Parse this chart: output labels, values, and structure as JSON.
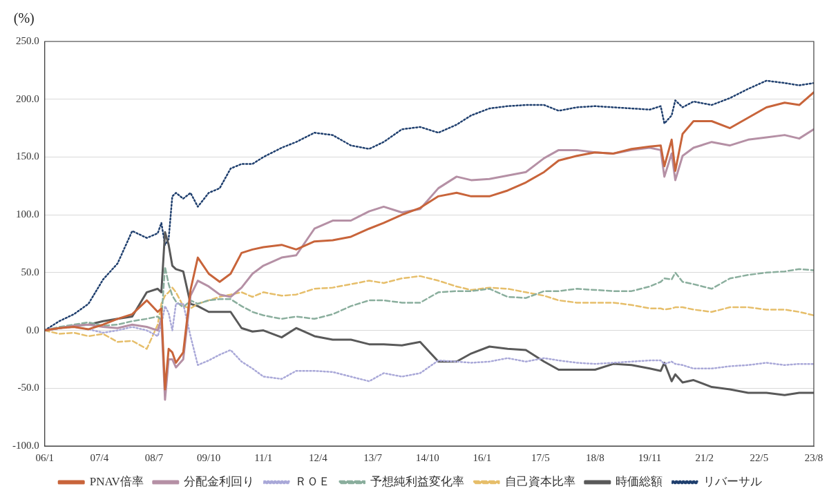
{
  "chart_data": {
    "type": "line",
    "ylabel": "(%)",
    "x": [
      "2006-01",
      "2006-05",
      "2006-09",
      "2007-01",
      "2007-05",
      "2007-09",
      "2008-01",
      "2008-05",
      "2008-08",
      "2008-09",
      "2008-10",
      "2008-11",
      "2008-12",
      "2009-01",
      "2009-03",
      "2009-05",
      "2009-07",
      "2009-10",
      "2010-01",
      "2010-04",
      "2010-07",
      "2010-10",
      "2011-01",
      "2011-06",
      "2011-10",
      "2012-03",
      "2012-08",
      "2013-01",
      "2013-06",
      "2013-10",
      "2014-03",
      "2014-08",
      "2015-01",
      "2015-06",
      "2015-10",
      "2016-03",
      "2016-08",
      "2017-01",
      "2017-06",
      "2017-10",
      "2018-03",
      "2018-08",
      "2019-01",
      "2019-06",
      "2019-11",
      "2020-02",
      "2020-03",
      "2020-05",
      "2020-06",
      "2020-08",
      "2020-11",
      "2021-04",
      "2021-09",
      "2022-02",
      "2022-07",
      "2022-12",
      "2023-04",
      "2023-08"
    ],
    "series": [
      {
        "name": "PNAV倍率",
        "color": "#c8643a",
        "line_style": "solid",
        "values": [
          0,
          2,
          3,
          1,
          5,
          10,
          14,
          26,
          16,
          19,
          -51,
          -16,
          -19,
          -28,
          -19,
          35,
          63,
          49,
          42,
          49,
          67,
          70,
          72,
          74,
          70,
          77,
          78,
          81,
          88,
          93,
          100,
          106,
          116,
          119,
          116,
          116,
          121,
          128,
          137,
          147,
          151,
          154,
          153,
          157,
          159,
          160,
          142,
          165,
          138,
          170,
          181,
          181,
          175,
          184,
          193,
          197,
          195,
          206
        ]
      },
      {
        "name": "分配金利回り",
        "color": "#b590a5",
        "line_style": "solid",
        "values": [
          0,
          2,
          4,
          5,
          3,
          2,
          5,
          3,
          0,
          10,
          -60,
          -25,
          -25,
          -32,
          -25,
          30,
          43,
          38,
          31,
          29,
          37,
          49,
          56,
          63,
          65,
          88,
          95,
          95,
          103,
          107,
          102,
          105,
          123,
          133,
          130,
          131,
          134,
          137,
          149,
          156,
          156,
          154,
          153,
          156,
          158,
          156,
          133,
          153,
          130,
          151,
          158,
          163,
          160,
          165,
          167,
          169,
          166,
          174
        ]
      },
      {
        "name": "ＲＯＥ",
        "color": "#a9a8d8",
        "line_style": "dotted",
        "values": [
          0,
          2,
          3,
          1,
          -2,
          0,
          3,
          0,
          -5,
          5,
          21,
          15,
          0,
          23,
          23,
          -5,
          -30,
          -26,
          -21,
          -17,
          -27,
          -33,
          -40,
          -42,
          -35,
          -35,
          -36,
          -40,
          -44,
          -37,
          -40,
          -37,
          -26,
          -27,
          -28,
          -27,
          -24,
          -27,
          -24,
          -26,
          -28,
          -29,
          -28,
          -27,
          -26,
          -26,
          -29,
          -27,
          -29,
          -30,
          -33,
          -33,
          -31,
          -30,
          -28,
          -30,
          -29,
          -29
        ]
      },
      {
        "name": "予想純利益変化率",
        "color": "#8aae9d",
        "line_style": "dashed",
        "values": [
          0,
          3,
          5,
          7,
          4,
          5,
          8,
          10,
          12,
          9,
          55,
          40,
          30,
          25,
          20,
          26,
          23,
          26,
          27,
          27,
          21,
          16,
          13,
          10,
          12,
          10,
          14,
          21,
          26,
          26,
          24,
          24,
          33,
          34,
          34,
          36,
          29,
          28,
          34,
          34,
          36,
          35,
          34,
          34,
          38,
          42,
          45,
          44,
          50,
          42,
          40,
          36,
          45,
          48,
          50,
          51,
          53,
          52
        ]
      },
      {
        "name": "自己資本比率",
        "color": "#e6be6a",
        "line_style": "dashed",
        "values": [
          0,
          -3,
          -2,
          -5,
          -3,
          -10,
          -9,
          -16,
          5,
          23,
          30,
          33,
          37,
          33,
          21,
          19,
          23,
          26,
          29,
          31,
          33,
          29,
          33,
          30,
          31,
          36,
          37,
          40,
          43,
          41,
          45,
          47,
          43,
          38,
          35,
          37,
          36,
          33,
          30,
          26,
          24,
          24,
          24,
          22,
          19,
          19,
          18,
          19,
          20,
          20,
          18,
          16,
          20,
          20,
          18,
          18,
          16,
          13
        ]
      },
      {
        "name": "時価総額",
        "color": "#595959",
        "line_style": "solid",
        "values": [
          0,
          2,
          4,
          5,
          8,
          10,
          12,
          33,
          36,
          33,
          85,
          74,
          56,
          53,
          51,
          23,
          21,
          16,
          16,
          16,
          2,
          -1,
          0,
          -6,
          2,
          -5,
          -8,
          -8,
          -12,
          -12,
          -13,
          -10,
          -27,
          -27,
          -20,
          -14,
          -16,
          -17,
          -27,
          -34,
          -34,
          -34,
          -29,
          -30,
          -33,
          -35,
          -28,
          -44,
          -38,
          -45,
          -43,
          -49,
          -51,
          -54,
          -54,
          -56,
          -54,
          -54
        ]
      },
      {
        "name": "リバーサル",
        "color": "#1f3f6e",
        "line_style": "dotted",
        "values": [
          0,
          8,
          14,
          23,
          44,
          58,
          86,
          80,
          84,
          93,
          74,
          79,
          116,
          119,
          114,
          119,
          107,
          119,
          123,
          140,
          144,
          144,
          150,
          158,
          163,
          171,
          169,
          160,
          157,
          163,
          174,
          176,
          171,
          178,
          186,
          192,
          194,
          195,
          195,
          190,
          193,
          194,
          193,
          192,
          191,
          194,
          179,
          186,
          199,
          193,
          198,
          195,
          201,
          209,
          216,
          214,
          212,
          214
        ]
      }
    ],
    "xlim": [
      "2006-01",
      "2023-08"
    ],
    "xticks": [
      {
        "value": "2006-01",
        "label": "06/1"
      },
      {
        "value": "2007-04",
        "label": "07/4"
      },
      {
        "value": "2008-07",
        "label": "08/7"
      },
      {
        "value": "2009-10",
        "label": "09/10"
      },
      {
        "value": "2011-01",
        "label": "11/1"
      },
      {
        "value": "2012-04",
        "label": "12/4"
      },
      {
        "value": "2013-07",
        "label": "13/7"
      },
      {
        "value": "2014-10",
        "label": "14/10"
      },
      {
        "value": "2016-01",
        "label": "16/1"
      },
      {
        "value": "2017-05",
        "label": "17/5"
      },
      {
        "value": "2018-08",
        "label": "18/8"
      },
      {
        "value": "2019-11",
        "label": "19/11"
      },
      {
        "value": "2021-02",
        "label": "21/2"
      },
      {
        "value": "2022-05",
        "label": "22/5"
      },
      {
        "value": "2023-08",
        "label": "23/8"
      }
    ],
    "ylim": [
      -100,
      250
    ],
    "yticks": [
      {
        "value": -100,
        "label": "-100.0"
      },
      {
        "value": -50,
        "label": "-50.0"
      },
      {
        "value": 0,
        "label": "0.0"
      },
      {
        "value": 50,
        "label": "50.0"
      },
      {
        "value": 100,
        "label": "100.0"
      },
      {
        "value": 150,
        "label": "150.0"
      },
      {
        "value": 200,
        "label": "200.0"
      },
      {
        "value": 250,
        "label": "250.0"
      }
    ],
    "grid": "y",
    "legend": "bottom",
    "marker": "none"
  }
}
